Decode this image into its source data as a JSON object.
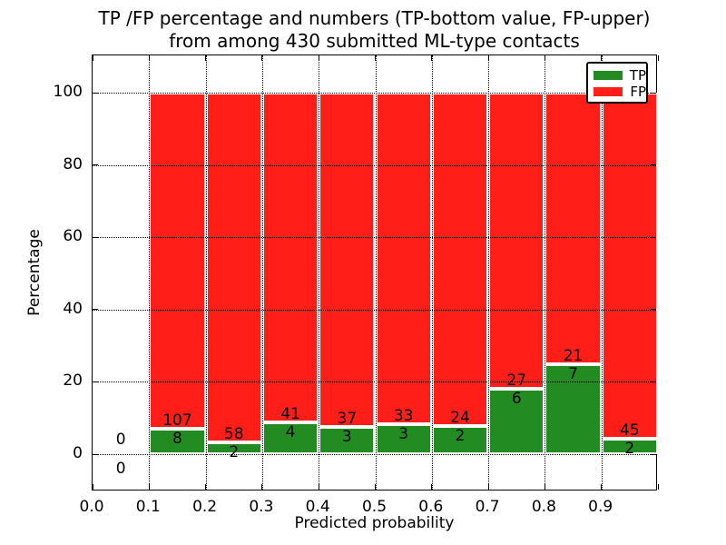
{
  "figure": {
    "title_line1": "TP /FP percentage and numbers (TP-bottom value, FP-upper)",
    "title_line2": "from among 430 submitted ML-type contacts",
    "xlabel": "Predicted probability",
    "ylabel": "Percentage"
  },
  "legend": {
    "items": [
      {
        "label": "TP",
        "color": "#228c22"
      },
      {
        "label": "FP",
        "color": "#ff1e18"
      }
    ]
  },
  "colors": {
    "tp_green": "#228c22",
    "fp_red": "#ff1e18",
    "bar_edge": "#ffffff",
    "text": "#000000",
    "background": "#ffffff",
    "grid": "#000000"
  },
  "chart_data": {
    "type": "bar",
    "stacked": true,
    "normalized_to_percent": true,
    "title": "TP /FP percentage and numbers (TP-bottom value, FP-upper) from among 430 submitted ML-type contacts",
    "xlabel": "Predicted probability",
    "ylabel": "Percentage",
    "xlim": [
      0.0,
      1.0
    ],
    "ylim": [
      -15,
      110
    ],
    "xticks": [
      "0.0",
      "0.1",
      "0.2",
      "0.3",
      "0.4",
      "0.5",
      "0.6",
      "0.7",
      "0.8",
      "0.9"
    ],
    "yticks": [
      0,
      20,
      40,
      60,
      80,
      100
    ],
    "grid": "dotted",
    "legend_position": "upper-right",
    "bin_width": 0.1,
    "series": [
      {
        "name": "TP",
        "color": "#228c22"
      },
      {
        "name": "FP",
        "color": "#ff1e18"
      }
    ],
    "bins": [
      {
        "x0": 0.0,
        "x1": 0.1,
        "tp_count": 0,
        "fp_count": 0,
        "tp_pct": 0
      },
      {
        "x0": 0.1,
        "x1": 0.2,
        "tp_count": 8,
        "fp_count": 107,
        "tp_pct": 6.96
      },
      {
        "x0": 0.2,
        "x1": 0.3,
        "tp_count": 2,
        "fp_count": 58,
        "tp_pct": 3.33
      },
      {
        "x0": 0.3,
        "x1": 0.4,
        "tp_count": 4,
        "fp_count": 41,
        "tp_pct": 8.89
      },
      {
        "x0": 0.4,
        "x1": 0.5,
        "tp_count": 3,
        "fp_count": 37,
        "tp_pct": 7.5
      },
      {
        "x0": 0.5,
        "x1": 0.6,
        "tp_count": 3,
        "fp_count": 33,
        "tp_pct": 8.33
      },
      {
        "x0": 0.6,
        "x1": 0.7,
        "tp_count": 2,
        "fp_count": 24,
        "tp_pct": 7.69
      },
      {
        "x0": 0.7,
        "x1": 0.8,
        "tp_count": 6,
        "fp_count": 27,
        "tp_pct": 18.18
      },
      {
        "x0": 0.8,
        "x1": 0.9,
        "tp_count": 7,
        "fp_count": 21,
        "tp_pct": 25.0
      },
      {
        "x0": 0.9,
        "x1": 1.0,
        "tp_count": 2,
        "fp_count": 45,
        "tp_pct": 4.26
      }
    ]
  }
}
